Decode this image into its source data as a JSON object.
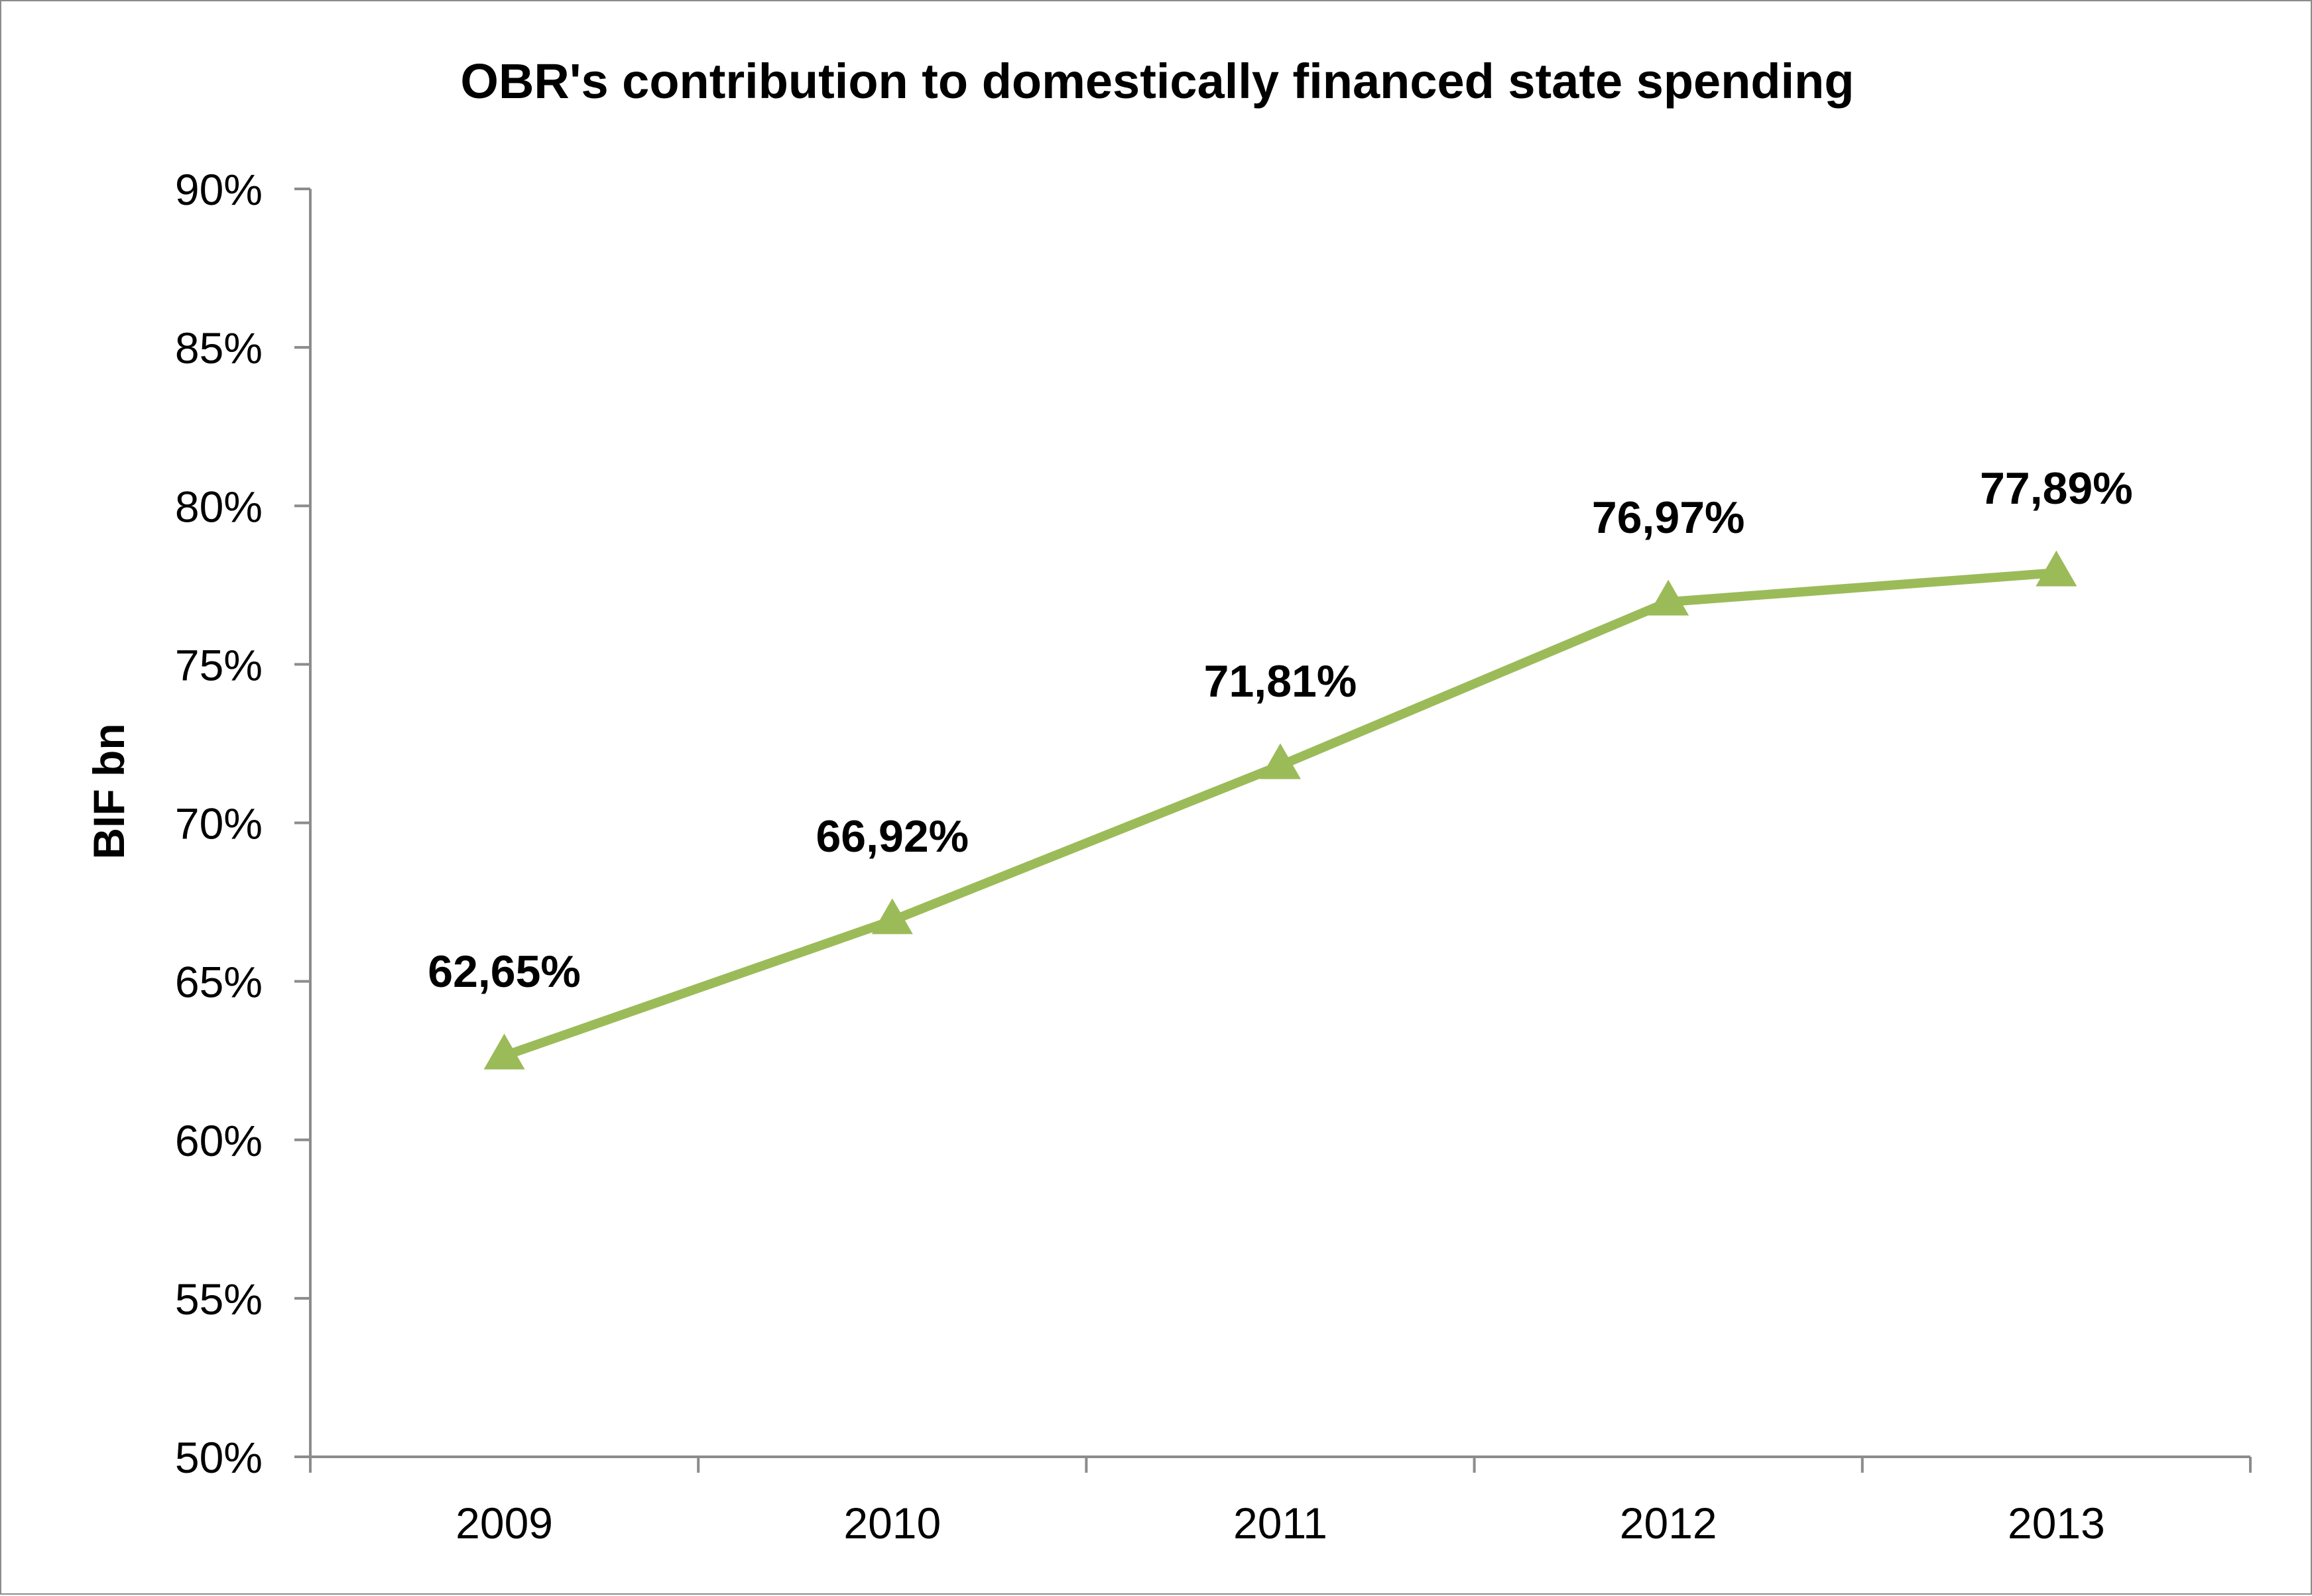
{
  "chart_data": {
    "type": "line",
    "title": "OBR's contribution to domestically financed state spending",
    "xlabel": "",
    "ylabel": "BIF bn",
    "categories": [
      "2009",
      "2010",
      "2011",
      "2012",
      "2013"
    ],
    "series": [
      {
        "values": [
          62.65,
          66.92,
          71.81,
          76.97,
          77.89
        ],
        "labels": [
          "62,65%",
          "66,92%",
          "71,81%",
          "76,97%",
          "77,89%"
        ],
        "color": "#9bbb59",
        "marker": "triangle"
      }
    ],
    "ylim": [
      50,
      90
    ],
    "yticks": [
      "50%",
      "55%",
      "60%",
      "65%",
      "70%",
      "75%",
      "80%",
      "85%",
      "90%"
    ],
    "grid": false,
    "legend": "none"
  }
}
